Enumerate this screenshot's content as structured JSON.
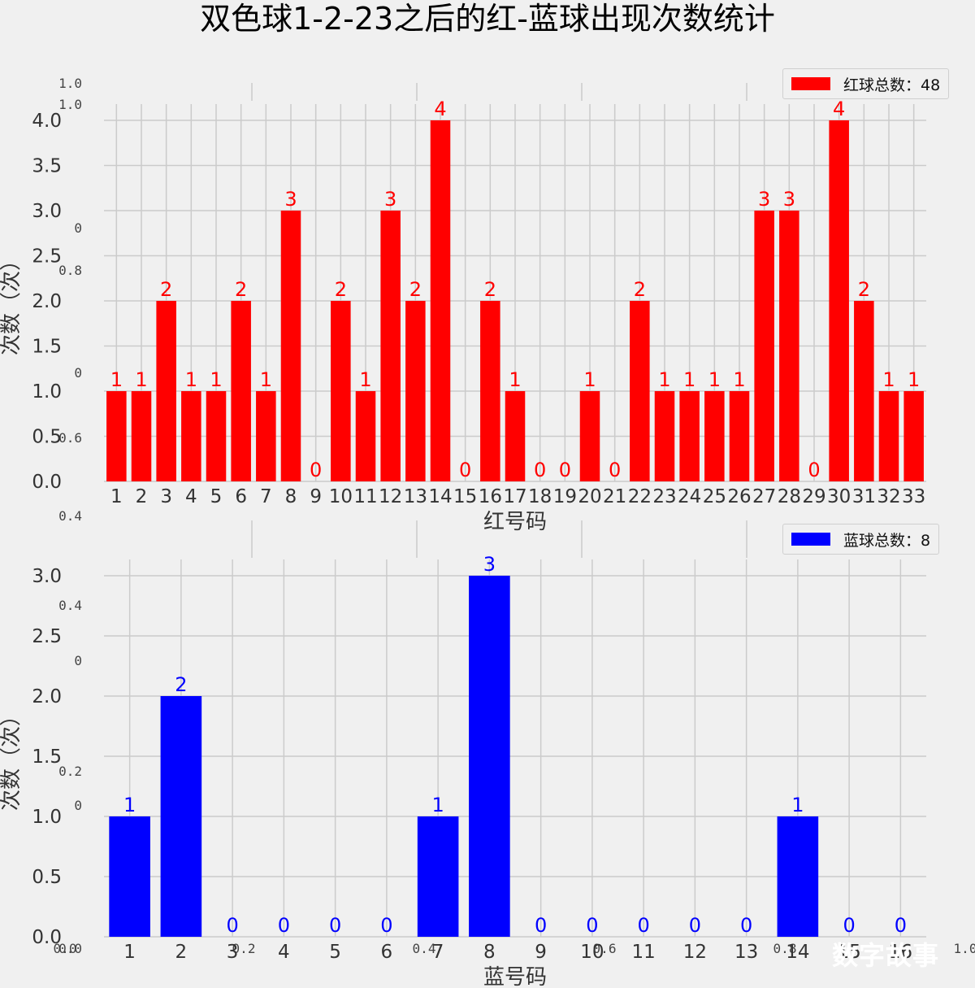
{
  "title": "双色球1-2-23之后的红-蓝球出现次数统计",
  "watermark": "数字故事",
  "chart_data": [
    {
      "type": "bar",
      "color": "#ff0000",
      "categories": [
        "1",
        "2",
        "3",
        "4",
        "5",
        "6",
        "7",
        "8",
        "9",
        "10",
        "11",
        "12",
        "13",
        "14",
        "15",
        "16",
        "17",
        "18",
        "19",
        "20",
        "21",
        "22",
        "23",
        "24",
        "25",
        "26",
        "27",
        "28",
        "29",
        "30",
        "31",
        "32",
        "33"
      ],
      "values": [
        1,
        1,
        2,
        1,
        1,
        2,
        1,
        3,
        0,
        2,
        1,
        3,
        2,
        4,
        0,
        2,
        1,
        0,
        0,
        1,
        0,
        2,
        1,
        1,
        1,
        1,
        3,
        3,
        0,
        4,
        2,
        1,
        1
      ],
      "xlabel": "红号码",
      "ylabel": "次数（次）",
      "ylim": [
        0,
        4.2
      ],
      "yticks": [
        "0.0",
        "0.5",
        "1.0",
        "1.5",
        "2.0",
        "2.5",
        "3.0",
        "3.5",
        "4.0"
      ],
      "legend": "红球总数：48",
      "legend_position": "top-right",
      "grid": true
    },
    {
      "type": "bar",
      "color": "#0000ff",
      "categories": [
        "1",
        "2",
        "3",
        "4",
        "5",
        "6",
        "7",
        "8",
        "9",
        "10",
        "11",
        "12",
        "13",
        "14",
        "15",
        "16"
      ],
      "values": [
        1,
        2,
        0,
        0,
        0,
        0,
        1,
        3,
        0,
        0,
        0,
        0,
        0,
        1,
        0,
        0
      ],
      "xlabel": "蓝号码",
      "ylabel": "次数（次）",
      "ylim": [
        0,
        3.1
      ],
      "yticks": [
        "0.0",
        "0.5",
        "1.0",
        "1.5",
        "2.0",
        "2.5",
        "3.0"
      ],
      "legend": "蓝球总数：8",
      "legend_position": "top-right",
      "grid": true
    }
  ],
  "ghost_axis": {
    "left_ticks": [
      "1.0",
      "1.0",
      "0",
      "0.8",
      "0",
      "0.6",
      "0.4",
      "0.4",
      "0",
      "0.2",
      "0",
      "0.0"
    ],
    "bottom_ticks": [
      "0.0",
      "0.2",
      "0.4",
      "0.6",
      "0.8",
      "1.0"
    ]
  }
}
